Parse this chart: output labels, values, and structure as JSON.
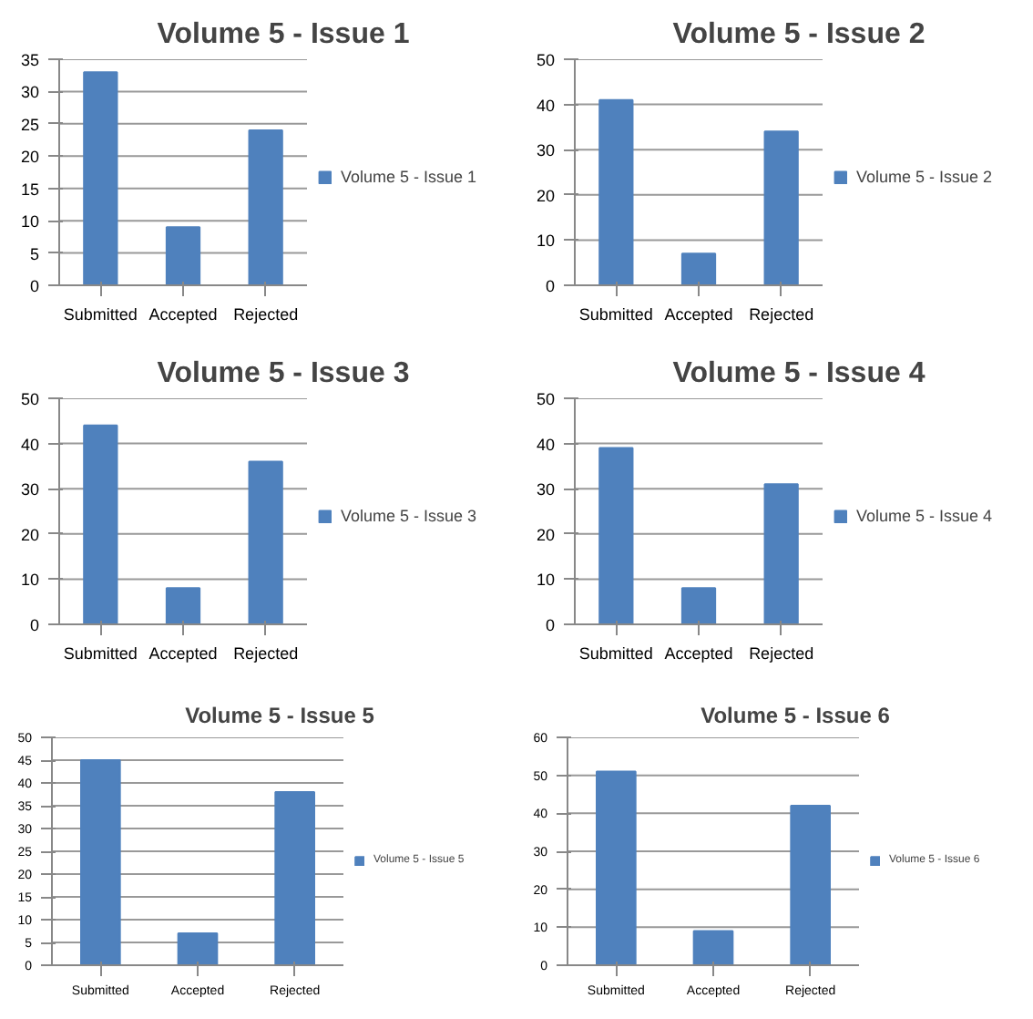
{
  "chart_data": [
    {
      "type": "bar",
      "title": "Volume 5 - Issue 1",
      "categories": [
        "Submitted",
        "Accepted",
        "Rejected"
      ],
      "series": [
        {
          "name": "Volume 5 - Issue 1",
          "color": "#4f81bd",
          "values": [
            33,
            9,
            24
          ]
        }
      ],
      "ylim": [
        0,
        35
      ],
      "yticks": [
        0,
        5,
        10,
        15,
        20,
        25,
        30,
        35
      ],
      "grid": "y",
      "legend": "right"
    },
    {
      "type": "bar",
      "title": "Volume 5 - Issue 2",
      "categories": [
        "Submitted",
        "Accepted",
        "Rejected"
      ],
      "series": [
        {
          "name": "Volume 5 - Issue 2",
          "color": "#4f81bd",
          "values": [
            41,
            7,
            34
          ]
        }
      ],
      "ylim": [
        0,
        50
      ],
      "yticks": [
        0,
        10,
        20,
        30,
        40,
        50
      ],
      "grid": "y",
      "legend": "right"
    },
    {
      "type": "bar",
      "title": "Volume 5 - Issue 3",
      "categories": [
        "Submitted",
        "Accepted",
        "Rejected"
      ],
      "series": [
        {
          "name": "Volume 5 - Issue 3",
          "color": "#4f81bd",
          "values": [
            44,
            8,
            36
          ]
        }
      ],
      "ylim": [
        0,
        50
      ],
      "yticks": [
        0,
        10,
        20,
        30,
        40,
        50
      ],
      "grid": "y",
      "legend": "right"
    },
    {
      "type": "bar",
      "title": "Volume 5 - Issue 4",
      "categories": [
        "Submitted",
        "Accepted",
        "Rejected"
      ],
      "series": [
        {
          "name": "Volume 5 - Issue 4",
          "color": "#4f81bd",
          "values": [
            39,
            8,
            31
          ]
        }
      ],
      "ylim": [
        0,
        50
      ],
      "yticks": [
        0,
        10,
        20,
        30,
        40,
        50
      ],
      "grid": "y",
      "legend": "right"
    },
    {
      "type": "bar",
      "title": "Volume 5 - Issue 5",
      "categories": [
        "Submitted",
        "Accepted",
        "Rejected"
      ],
      "series": [
        {
          "name": "Volume 5 - Issue 5",
          "color": "#4f81bd",
          "values": [
            45,
            7,
            38
          ]
        }
      ],
      "ylim": [
        0,
        50
      ],
      "yticks": [
        0,
        5,
        10,
        15,
        20,
        25,
        30,
        35,
        40,
        45,
        50
      ],
      "grid": "y",
      "legend": "right"
    },
    {
      "type": "bar",
      "title": "Volume 5 - Issue 6",
      "categories": [
        "Submitted",
        "Accepted",
        "Rejected"
      ],
      "series": [
        {
          "name": "Volume 5 - Issue 6",
          "color": "#4f81bd",
          "values": [
            51,
            9,
            42
          ]
        }
      ],
      "ylim": [
        0,
        60
      ],
      "yticks": [
        0,
        10,
        20,
        30,
        40,
        50,
        60
      ],
      "grid": "y",
      "legend": "right"
    }
  ]
}
